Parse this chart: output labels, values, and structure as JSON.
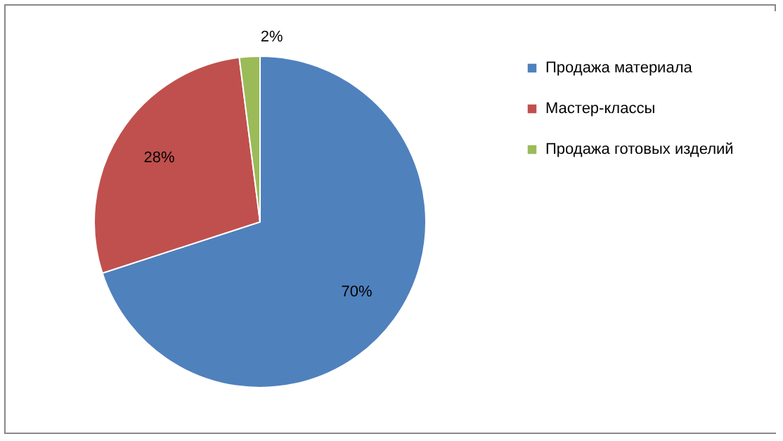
{
  "chart_data": {
    "type": "pie",
    "categories": [
      "Продажа материала",
      "Мастер-классы",
      "Продажа готовых изделий"
    ],
    "values": [
      70,
      28,
      2
    ],
    "colors": [
      "#4f81bd",
      "#c0504d",
      "#9bbb59"
    ],
    "value_labels": [
      "70%",
      "28%",
      "2%"
    ],
    "legend": "right"
  }
}
